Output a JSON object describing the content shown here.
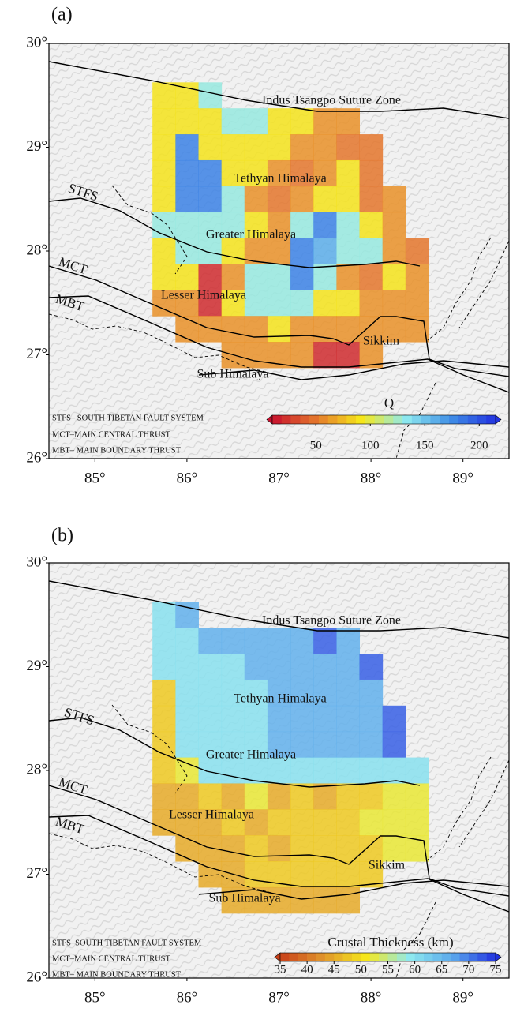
{
  "panels": [
    {
      "label": "(a)",
      "lon_range": [
        84.5,
        89.5
      ],
      "lat_range": [
        26,
        30
      ],
      "lon_ticks": [
        {
          "value": 85,
          "label": "85°"
        },
        {
          "value": 86,
          "label": "86°"
        },
        {
          "value": 87,
          "label": "87°"
        },
        {
          "value": 88,
          "label": "88°"
        },
        {
          "value": 89,
          "label": "89°"
        }
      ],
      "lat_ticks": [
        {
          "value": 30,
          "label": "30°"
        },
        {
          "value": 29,
          "label": "29°"
        },
        {
          "value": 28,
          "label": "28°"
        },
        {
          "value": 27,
          "label": "27°"
        },
        {
          "value": 26,
          "label": "26°"
        }
      ],
      "places": [
        "Indus Tsangpo Suture Zone",
        "Tethyan Himalaya",
        "Greater Himalaya",
        "Lesser Himalaya",
        "Sikkim",
        "Sub Himalaya"
      ],
      "faults": [
        "STFS",
        "MCT",
        "MBT"
      ],
      "legend": [
        "STFS– SOUTH  TIBETAN FAULT SYSTEM",
        "MCT–MAIN  CENTRAL THRUST",
        "MBT– MAIN  BOUNDARY THRUST"
      ],
      "colorbar": {
        "title": "Q",
        "range": [
          10,
          215
        ],
        "ticks": [
          50,
          100,
          150,
          200
        ],
        "colors": [
          "#c8102e",
          "#e5792c",
          "#f6e81a",
          "#8ee9ef",
          "#3f8ee6",
          "#2233e0"
        ]
      },
      "cells": [
        [
          90,
          90,
          130,
          null,
          null,
          null,
          null,
          null,
          null,
          null,
          null,
          null
        ],
        [
          90,
          90,
          90,
          130,
          130,
          90,
          90,
          60,
          60,
          null,
          null,
          null
        ],
        [
          90,
          180,
          90,
          90,
          90,
          90,
          60,
          60,
          50,
          50,
          null,
          null
        ],
        [
          90,
          180,
          180,
          90,
          90,
          60,
          50,
          60,
          90,
          50,
          null,
          null
        ],
        [
          90,
          180,
          180,
          130,
          60,
          50,
          60,
          90,
          90,
          50,
          60,
          null
        ],
        [
          130,
          130,
          130,
          130,
          90,
          60,
          130,
          180,
          130,
          90,
          60,
          null
        ],
        [
          90,
          130,
          130,
          90,
          60,
          60,
          180,
          160,
          130,
          130,
          60,
          50
        ],
        [
          90,
          90,
          20,
          60,
          130,
          130,
          180,
          130,
          60,
          50,
          90,
          60
        ],
        [
          60,
          60,
          20,
          90,
          130,
          130,
          130,
          90,
          90,
          60,
          60,
          60
        ],
        [
          null,
          60,
          60,
          60,
          60,
          90,
          60,
          60,
          60,
          60,
          60,
          60
        ],
        [
          null,
          null,
          null,
          60,
          60,
          60,
          60,
          20,
          20,
          60,
          null,
          null
        ]
      ]
    },
    {
      "label": "(b)",
      "lon_range": [
        84.5,
        89.5
      ],
      "lat_range": [
        26,
        30
      ],
      "lon_ticks": [
        {
          "value": 85,
          "label": "85°"
        },
        {
          "value": 86,
          "label": "86°"
        },
        {
          "value": 87,
          "label": "87°"
        },
        {
          "value": 88,
          "label": "88°"
        },
        {
          "value": 89,
          "label": "89°"
        }
      ],
      "lat_ticks": [
        {
          "value": 30,
          "label": "30°"
        },
        {
          "value": 29,
          "label": "29°"
        },
        {
          "value": 28,
          "label": "28°"
        },
        {
          "value": 27,
          "label": "27°"
        },
        {
          "value": 26,
          "label": "26°"
        }
      ],
      "places": [
        "Indus Tsangpo Suture Zone",
        "Tethyan Himalaya",
        "Greater Himalaya",
        "Lesser Himalaya",
        "Sikkim",
        "Sub Himalaya"
      ],
      "faults": [
        "STFS",
        "MCT",
        "MBT"
      ],
      "legend": [
        "STFS–SOUTH  TIBETAN FAULT SYSTEM",
        "MCT–MAIN  CENTRAL THRUST",
        "MBT– MAIN  BOUNDARY THRUST"
      ],
      "colorbar": {
        "title": "Crustal Thickness (km)",
        "range": [
          35,
          75
        ],
        "ticks": [
          35,
          40,
          45,
          50,
          55,
          60,
          65,
          70,
          75
        ],
        "colors": [
          "#c8401a",
          "#e0952c",
          "#f6e81a",
          "#8ee9ef",
          "#5aa8ec",
          "#2233e0"
        ]
      },
      "cells": [
        [
          60,
          66,
          null,
          null,
          null,
          null,
          null,
          null,
          null,
          null,
          null,
          null
        ],
        [
          60,
          60,
          66,
          66,
          66,
          66,
          66,
          72,
          66,
          null,
          null,
          null
        ],
        [
          60,
          60,
          60,
          60,
          66,
          66,
          66,
          66,
          66,
          72,
          null,
          null
        ],
        [
          48,
          60,
          60,
          60,
          60,
          66,
          66,
          66,
          66,
          66,
          null,
          null
        ],
        [
          48,
          60,
          60,
          60,
          60,
          66,
          66,
          66,
          66,
          66,
          72,
          null
        ],
        [
          48,
          60,
          60,
          60,
          60,
          66,
          66,
          66,
          66,
          66,
          72,
          null
        ],
        [
          48,
          52,
          60,
          60,
          60,
          60,
          60,
          60,
          60,
          60,
          60,
          60
        ],
        [
          45,
          45,
          48,
          45,
          52,
          45,
          48,
          45,
          48,
          48,
          52,
          52
        ],
        [
          45,
          45,
          45,
          48,
          45,
          48,
          48,
          48,
          48,
          52,
          52,
          52
        ],
        [
          null,
          45,
          45,
          45,
          48,
          45,
          48,
          48,
          48,
          48,
          52,
          52
        ],
        [
          null,
          null,
          45,
          45,
          48,
          48,
          48,
          48,
          48,
          48,
          null,
          null
        ],
        [
          null,
          null,
          null,
          45,
          45,
          45,
          45,
          45,
          45,
          null,
          null,
          null
        ]
      ]
    }
  ]
}
